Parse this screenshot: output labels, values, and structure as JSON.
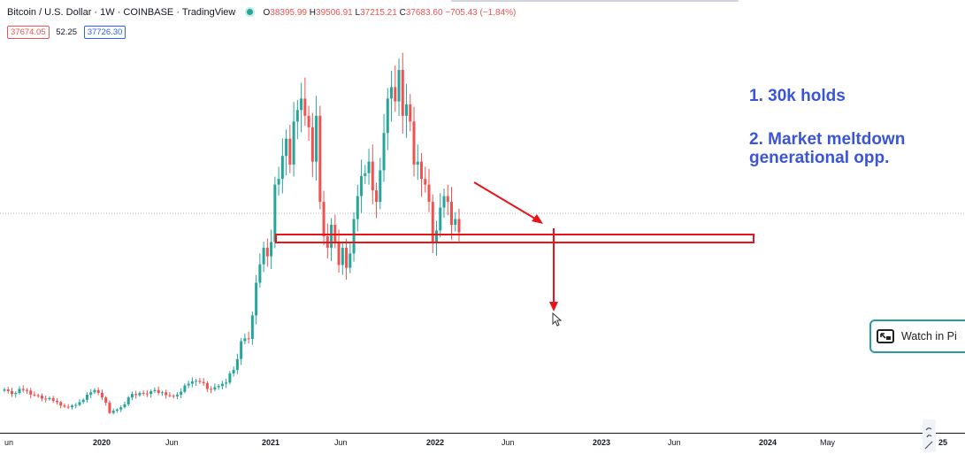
{
  "header": {
    "title": "Bitcoin / U.S. Dollar · 1W · COINBASE · TradingView",
    "open_label": "O",
    "open": "38395.99",
    "high_label": "H",
    "high": "39506.91",
    "low_label": "L",
    "low": "37215.21",
    "close_label": "C",
    "close": "37683.60",
    "change": "−705.43 (−1.84%)"
  },
  "prices": {
    "bid": "37674.05",
    "spread": "52.25",
    "ask": "37726.30"
  },
  "annotations": {
    "line1": "1. 30k holds",
    "line2a": "2. Market meltdown",
    "line2b": "generational opp."
  },
  "watch_button": {
    "label": "Watch in Pi",
    "icon": "picture-in-picture-icon"
  },
  "x_axis": {
    "ticks": [
      "un",
      "2020",
      "Jun",
      "2021",
      "Jun",
      "2022",
      "Jun",
      "2023",
      "Jun",
      "2024",
      "May",
      "25"
    ]
  },
  "colors": {
    "up": "#26a69a",
    "down": "#ef5350",
    "annotation": "#3a55d6",
    "drawing": "#e8141a"
  },
  "chart_data": {
    "type": "candlestick",
    "symbol": "BTCUSD",
    "interval": "1W",
    "exchange": "COINBASE",
    "last_close": 37683.6,
    "support_zone_label": "",
    "series": [
      {
        "name": "",
        "values": [
          10300,
          10000,
          9500,
          9700,
          10400,
          10200,
          10100,
          9400,
          9300,
          9200,
          8700,
          8600,
          8800,
          8300,
          8100,
          7500,
          7300,
          7200,
          7500,
          7600,
          8100,
          8500,
          9400,
          9800,
          10200,
          9700,
          8900,
          8000,
          6200,
          6600,
          6800,
          7200,
          7700,
          8900,
          9500,
          9300,
          9700,
          9600,
          9500,
          10000,
          10200,
          9700,
          9800,
          9300,
          9200,
          9100,
          9400,
          9900,
          11000,
          11300,
          11700,
          11800,
          11600,
          11400,
          10400,
          10300,
          10700,
          10900,
          11300,
          11500,
          13100,
          13700,
          15600,
          18700,
          19200,
          19100,
          23200,
          28900,
          32100,
          35000,
          33500,
          36000,
          46000,
          47000,
          51000,
          54000,
          49500,
          57000,
          59000,
          61000,
          58000,
          56000,
          50000,
          58000,
          43000,
          37000,
          35000,
          39000,
          36000,
          32000,
          35000,
          31500,
          34000,
          40000,
          44000,
          47500,
          48000,
          50000,
          45000,
          43000,
          48500,
          55000,
          61000,
          63000,
          60500,
          66000,
          58000,
          60000,
          57000,
          49500,
          50000,
          47000,
          46000,
          43000,
          36000,
          38000,
          42000,
          44000,
          43000,
          39000,
          40000,
          37683
        ]
      }
    ],
    "x_range": [
      "2019-05",
      "2025-01"
    ]
  }
}
